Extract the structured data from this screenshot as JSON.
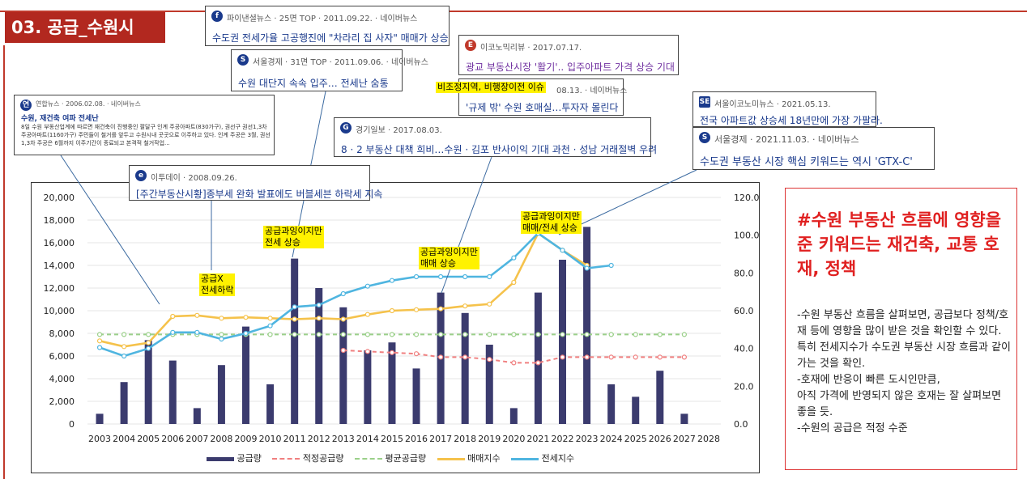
{
  "page_title": "03. 공급_수원시",
  "side_panel": {
    "headline": "#수원 부동산 흐름에 영향을 준 키워드는 재건축, 교통 호재, 정책",
    "lines": [
      "-수원 부동산 흐름을 살펴보면, 공급보다 정책/호재 등에 영향을 많이 받은 것을 확인할 수 있다. 특히 전세지수가 수도권 부동산 시장 흐름과 같이 가는 것을 확인.",
      "-호재에 반응이 빠른 도시인만큼,",
      "아직 가격에 반영되지 않은 호재는 잘 살펴보면 좋을 듯.",
      "-수원의 공급은 적정 수준"
    ]
  },
  "news": [
    {
      "source": "파이낸셜뉴스 · 25면 TOP · 2011.09.22. · 네이버뉴스",
      "headline": "수도권 전세가율 고공행진에 \"차라리 집 사자\" 매매가 상승",
      "icon": "fn-logo",
      "color": "#1a3a8c"
    },
    {
      "source": "서울경제 · 31면 TOP · 2011.09.06. · 네이버뉴스",
      "headline": "수원 대단지 속속 입주… 전세난 숨통",
      "icon": "s-logo",
      "color": "#1a3a8c"
    },
    {
      "source": "연합뉴스 · 2006.02.08. · 네이버뉴스",
      "headline": "수원, 재건축 여파 전세난",
      "body": "8일 수원 부동산업계에 따르면 재건축이 진행중인 팔달구 인계 주공아파트(830가구), 권선구 권선1,3차 주공아파트(1160가구) 주민들이 철거를 앞두고 수원시내 곳곳으로 이주하고 있다. 인계 주공은 3월, 권선1,3차 주공은 6월까지 이주기간이 종료되고 본격적 철거작업...",
      "icon": "yonhap-logo",
      "color": "#1a3a8c"
    },
    {
      "source": "이투데이 · 2008.09.26.",
      "headline": "[주간부동산시황]종부세 완화 발표에도 버블세븐 하락세 지속",
      "icon": "etoday-logo",
      "color": "#1a3a8c"
    },
    {
      "source": "이코노믹리뷰 · 2017.07.17.",
      "headline": "광교 부동산시장 '활기'.. 입주아파트 가격 상승 기대",
      "icon": "er-logo",
      "color": "#7030a0"
    },
    {
      "source": "08.13. · 네이버뉴스",
      "headline": "'규제 밖' 수원 호매실…투자자 몰린다",
      "note": "비조정지역, 비행장이전 이슈",
      "icon": "s-logo",
      "color": "#1a3a8c"
    },
    {
      "source": "경기일보 · 2017.08.03.",
      "headline": "8 · 2 부동산 대책 희비…수원 · 김포 반사이익 기대 과천 · 성남 거래절벽 우려",
      "icon": "kg-logo",
      "color": "#1a3a8c"
    },
    {
      "source": "서울이코노미뉴스 · 2021.05.13.",
      "headline": "전국 아파트값 상승세 18년만에 가장 가팔라.",
      "icon": "se-logo",
      "color": "#1a3a8c"
    },
    {
      "source": "서울경제 · 2021.11.03. · 네이버뉴스",
      "headline": "수도권 부동산 시장 핵심 키워드는 역시 'GTX-C'",
      "icon": "s-logo",
      "color": "#1a3a8c"
    }
  ],
  "annotations": [
    {
      "text": "공급X",
      "text2": "전세하락"
    },
    {
      "text": "공급과잉이지만",
      "text2": "전세 상승"
    },
    {
      "text": "공급과잉이지만",
      "text2": "매매 상승"
    },
    {
      "text": "공급과잉이지만",
      "text2": "매매/전세 상승"
    }
  ],
  "chart_data": {
    "type": "bar",
    "categories": [
      "2003",
      "2004",
      "2005",
      "2006",
      "2007",
      "2008",
      "2009",
      "2010",
      "2011",
      "2012",
      "2013",
      "2014",
      "2015",
      "2016",
      "2017",
      "2018",
      "2019",
      "2020",
      "2021",
      "2022",
      "2023",
      "2024",
      "2025",
      "2026",
      "2027",
      "2028"
    ],
    "y_left": {
      "min": 0,
      "max": 20000,
      "ticks": [
        "0",
        "2,000",
        "4,000",
        "6,000",
        "8,000",
        "10,000",
        "12,000",
        "14,000",
        "16,000",
        "18,000",
        "20,000"
      ]
    },
    "y_right": {
      "min": 0,
      "max": 120,
      "ticks": [
        "0.0",
        "20.0",
        "40.0",
        "60.0",
        "80.0",
        "100.0",
        "120.0"
      ]
    },
    "series": [
      {
        "name": "공급량",
        "kind": "bar",
        "axis": "left",
        "color": "#3b3b6e",
        "values": [
          900,
          3700,
          7400,
          5600,
          1400,
          5200,
          8600,
          3500,
          14600,
          12000,
          10300,
          6500,
          7200,
          4900,
          11600,
          9800,
          7000,
          1400,
          11600,
          14500,
          17400,
          3500,
          2400,
          4700,
          900,
          0
        ]
      },
      {
        "name": "적정공급량",
        "kind": "line",
        "axis": "left",
        "dash": true,
        "color": "#f08080",
        "values": [
          null,
          null,
          null,
          null,
          null,
          null,
          null,
          null,
          null,
          null,
          6500,
          6400,
          6300,
          6200,
          5900,
          5900,
          5700,
          5400,
          5400,
          5900,
          5900,
          5900,
          5900,
          5900,
          5900,
          null
        ]
      },
      {
        "name": "평균공급량",
        "kind": "line",
        "axis": "left",
        "dash": true,
        "color": "#9bd08a",
        "values": [
          7900,
          7900,
          7900,
          7900,
          7900,
          7900,
          7900,
          7900,
          7900,
          7900,
          7900,
          7900,
          7900,
          7900,
          7900,
          7900,
          7900,
          7900,
          7900,
          7900,
          7900,
          7900,
          7900,
          7900,
          7900,
          null
        ]
      },
      {
        "name": "매매지수",
        "kind": "line",
        "axis": "right",
        "color": "#f5c24b",
        "values": [
          44,
          41,
          43,
          57,
          57.5,
          56,
          56.5,
          56,
          55.5,
          56,
          55.5,
          58,
          60,
          60.5,
          61,
          62.5,
          63.5,
          75,
          101,
          92,
          84,
          null,
          null,
          null,
          null,
          null
        ]
      },
      {
        "name": "전세지수",
        "kind": "line",
        "axis": "right",
        "color": "#4fb5e0",
        "values": [
          40.5,
          36,
          40,
          48.5,
          48.5,
          45,
          48,
          52,
          62,
          63,
          69,
          73,
          76,
          78,
          78,
          78,
          78,
          88,
          101,
          92,
          82.5,
          84,
          null,
          null,
          null,
          null
        ]
      }
    ]
  }
}
